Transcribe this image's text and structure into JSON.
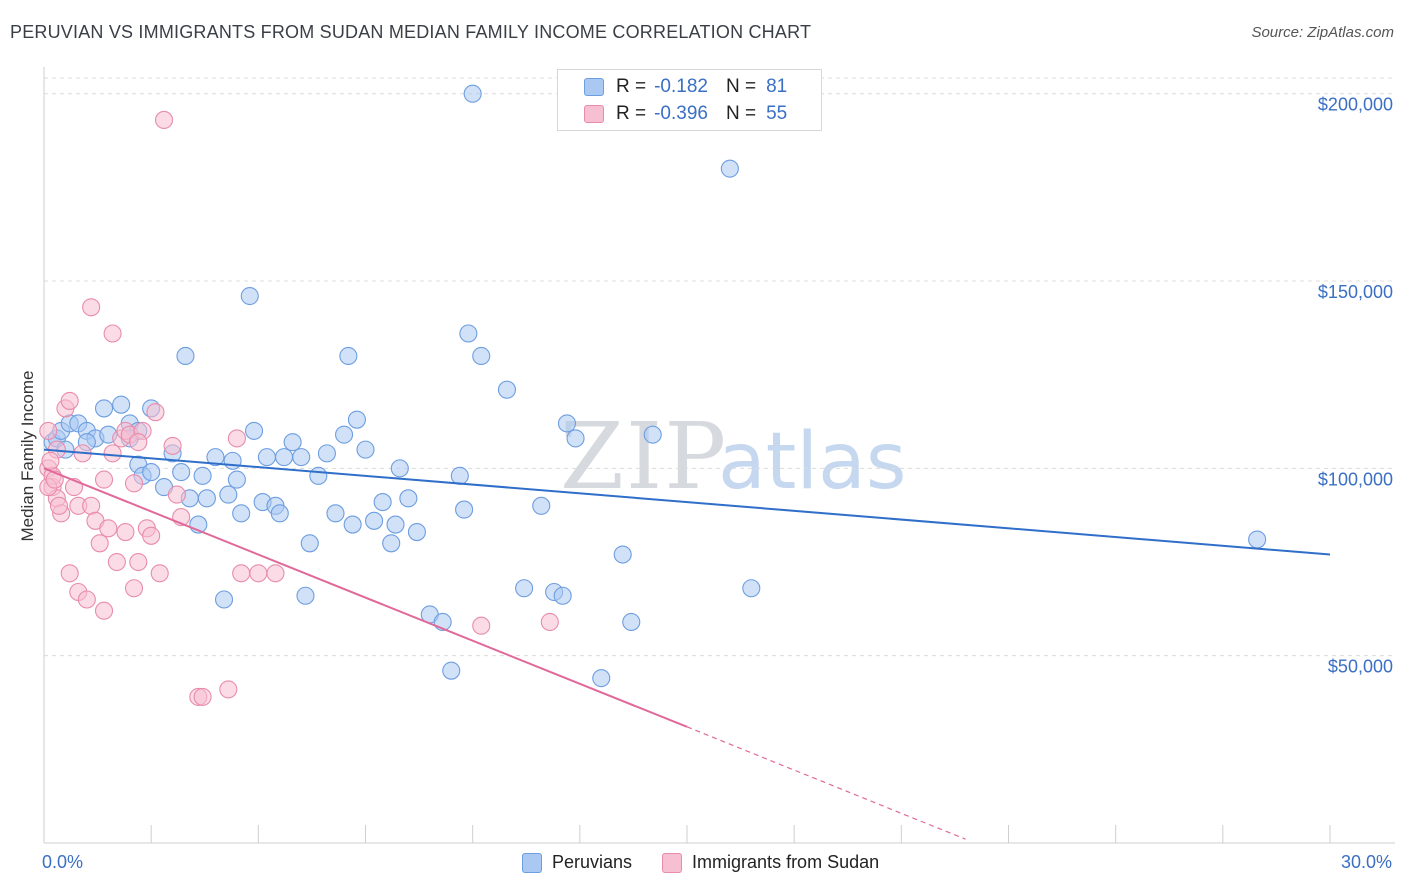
{
  "header": {
    "title": "PERUVIAN VS IMMIGRANTS FROM SUDAN MEDIAN FAMILY INCOME CORRELATION CHART",
    "source": "Source: ZipAtlas.com"
  },
  "legend": {
    "rows": [
      {
        "r_label": "R =",
        "r_value": "-0.182",
        "n_label": "N =",
        "n_value": "81",
        "color": "#a9c8f2",
        "border": "#6d9ee0"
      },
      {
        "r_label": "R =",
        "r_value": "-0.396",
        "n_label": "N =",
        "n_value": "55",
        "color": "#f7bfd2",
        "border": "#e88cab"
      }
    ]
  },
  "bottom_legend": [
    {
      "label": "Peruvians",
      "color": "#a9c8f2",
      "border": "#6d9ee0"
    },
    {
      "label": "Immigrants from Sudan",
      "color": "#f7bfd2",
      "border": "#e88cab"
    }
  ],
  "watermark": {
    "zip": "ZIP",
    "atlas": "atlas"
  },
  "chart_data": {
    "type": "scatter",
    "ylabel": "Median Family Income",
    "xlabel": "",
    "x_tick_labels": {
      "min": "0.0%",
      "max": "30.0%"
    },
    "xlim": [
      0,
      30
    ],
    "ylim": [
      0,
      205000
    ],
    "y_ticks": [
      {
        "value": 50000,
        "label": "$50,000"
      },
      {
        "value": 100000,
        "label": "$100,000"
      },
      {
        "value": 150000,
        "label": "$150,000"
      },
      {
        "value": 200000,
        "label": "$200,000"
      }
    ],
    "grid": "horizontal dashed",
    "series": [
      {
        "name": "Peruvians",
        "color": "#6d9ee0",
        "fill": "#a9c8f2",
        "trend_color": "#2f6fca",
        "trend": {
          "x0": 0.0,
          "y0": 105000,
          "x1": 30.0,
          "y1": 77000
        },
        "points": [
          [
            0.2,
            107000
          ],
          [
            0.3,
            108000
          ],
          [
            0.4,
            110000
          ],
          [
            0.6,
            112000
          ],
          [
            0.8,
            112000
          ],
          [
            1.0,
            110000
          ],
          [
            1.2,
            108000
          ],
          [
            1.4,
            116000
          ],
          [
            1.5,
            109000
          ],
          [
            1.8,
            117000
          ],
          [
            2.0,
            112000
          ],
          [
            2.2,
            110000
          ],
          [
            2.5,
            116000
          ],
          [
            2.0,
            108000
          ],
          [
            2.2,
            101000
          ],
          [
            2.3,
            98000
          ],
          [
            2.5,
            99000
          ],
          [
            2.8,
            95000
          ],
          [
            3.0,
            104000
          ],
          [
            3.2,
            99000
          ],
          [
            3.3,
            130000
          ],
          [
            3.4,
            92000
          ],
          [
            3.6,
            85000
          ],
          [
            3.7,
            98000
          ],
          [
            3.8,
            92000
          ],
          [
            4.0,
            103000
          ],
          [
            4.2,
            65000
          ],
          [
            4.3,
            93000
          ],
          [
            4.4,
            102000
          ],
          [
            4.5,
            97000
          ],
          [
            4.6,
            88000
          ],
          [
            4.8,
            146000
          ],
          [
            4.9,
            110000
          ],
          [
            5.1,
            91000
          ],
          [
            5.2,
            103000
          ],
          [
            5.4,
            90000
          ],
          [
            5.5,
            88000
          ],
          [
            5.6,
            103000
          ],
          [
            5.8,
            107000
          ],
          [
            6.0,
            103000
          ],
          [
            6.2,
            80000
          ],
          [
            6.1,
            66000
          ],
          [
            6.4,
            98000
          ],
          [
            6.6,
            104000
          ],
          [
            6.8,
            88000
          ],
          [
            7.0,
            109000
          ],
          [
            7.1,
            130000
          ],
          [
            7.2,
            85000
          ],
          [
            7.3,
            113000
          ],
          [
            7.5,
            105000
          ],
          [
            7.7,
            86000
          ],
          [
            7.9,
            91000
          ],
          [
            8.1,
            80000
          ],
          [
            8.2,
            85000
          ],
          [
            8.3,
            100000
          ],
          [
            8.5,
            92000
          ],
          [
            8.7,
            83000
          ],
          [
            9.0,
            61000
          ],
          [
            9.3,
            59000
          ],
          [
            9.5,
            46000
          ],
          [
            9.7,
            98000
          ],
          [
            9.8,
            89000
          ],
          [
            9.9,
            136000
          ],
          [
            10.2,
            130000
          ],
          [
            10.8,
            121000
          ],
          [
            11.2,
            68000
          ],
          [
            11.6,
            90000
          ],
          [
            11.9,
            67000
          ],
          [
            12.1,
            66000
          ],
          [
            12.2,
            112000
          ],
          [
            12.4,
            108000
          ],
          [
            13.0,
            44000
          ],
          [
            13.5,
            77000
          ],
          [
            13.7,
            59000
          ],
          [
            14.2,
            109000
          ],
          [
            16.0,
            180000
          ],
          [
            16.5,
            68000
          ],
          [
            28.3,
            81000
          ],
          [
            10.0,
            200000
          ],
          [
            1.0,
            107000
          ],
          [
            0.5,
            105000
          ]
        ]
      },
      {
        "name": "Immigrants from Sudan",
        "color": "#e88cab",
        "fill": "#f7bfd2",
        "trend_color": "#e0699a",
        "trend": {
          "x0": 0.0,
          "y0": 100000,
          "x1": 15.0,
          "y1": 31000
        },
        "trend_dashed_to": {
          "x": 21.5,
          "y": 1000
        },
        "points": [
          [
            0.1,
            110000
          ],
          [
            0.1,
            100000
          ],
          [
            0.2,
            95000
          ],
          [
            0.2,
            98000
          ],
          [
            0.3,
            105000
          ],
          [
            0.3,
            92000
          ],
          [
            0.4,
            88000
          ],
          [
            0.5,
            116000
          ],
          [
            0.6,
            118000
          ],
          [
            0.6,
            72000
          ],
          [
            0.7,
            95000
          ],
          [
            0.8,
            90000
          ],
          [
            0.8,
            67000
          ],
          [
            0.9,
            104000
          ],
          [
            1.0,
            65000
          ],
          [
            1.1,
            90000
          ],
          [
            1.1,
            143000
          ],
          [
            1.2,
            86000
          ],
          [
            1.3,
            80000
          ],
          [
            1.4,
            97000
          ],
          [
            1.4,
            62000
          ],
          [
            1.5,
            84000
          ],
          [
            1.6,
            136000
          ],
          [
            1.6,
            104000
          ],
          [
            1.7,
            75000
          ],
          [
            1.8,
            108000
          ],
          [
            1.9,
            110000
          ],
          [
            1.9,
            83000
          ],
          [
            2.0,
            109000
          ],
          [
            2.1,
            96000
          ],
          [
            2.1,
            68000
          ],
          [
            2.2,
            75000
          ],
          [
            2.3,
            110000
          ],
          [
            2.4,
            84000
          ],
          [
            2.5,
            82000
          ],
          [
            2.6,
            115000
          ],
          [
            2.7,
            72000
          ],
          [
            2.8,
            193000
          ],
          [
            3.0,
            106000
          ],
          [
            3.1,
            93000
          ],
          [
            3.2,
            87000
          ],
          [
            3.6,
            39000
          ],
          [
            3.7,
            39000
          ],
          [
            4.3,
            41000
          ],
          [
            4.5,
            108000
          ],
          [
            4.6,
            72000
          ],
          [
            5.0,
            72000
          ],
          [
            5.4,
            72000
          ],
          [
            10.2,
            58000
          ],
          [
            11.8,
            59000
          ],
          [
            0.1,
            95000
          ],
          [
            0.15,
            102000
          ],
          [
            0.25,
            97000
          ],
          [
            0.35,
            90000
          ],
          [
            2.2,
            107000
          ]
        ]
      }
    ]
  }
}
